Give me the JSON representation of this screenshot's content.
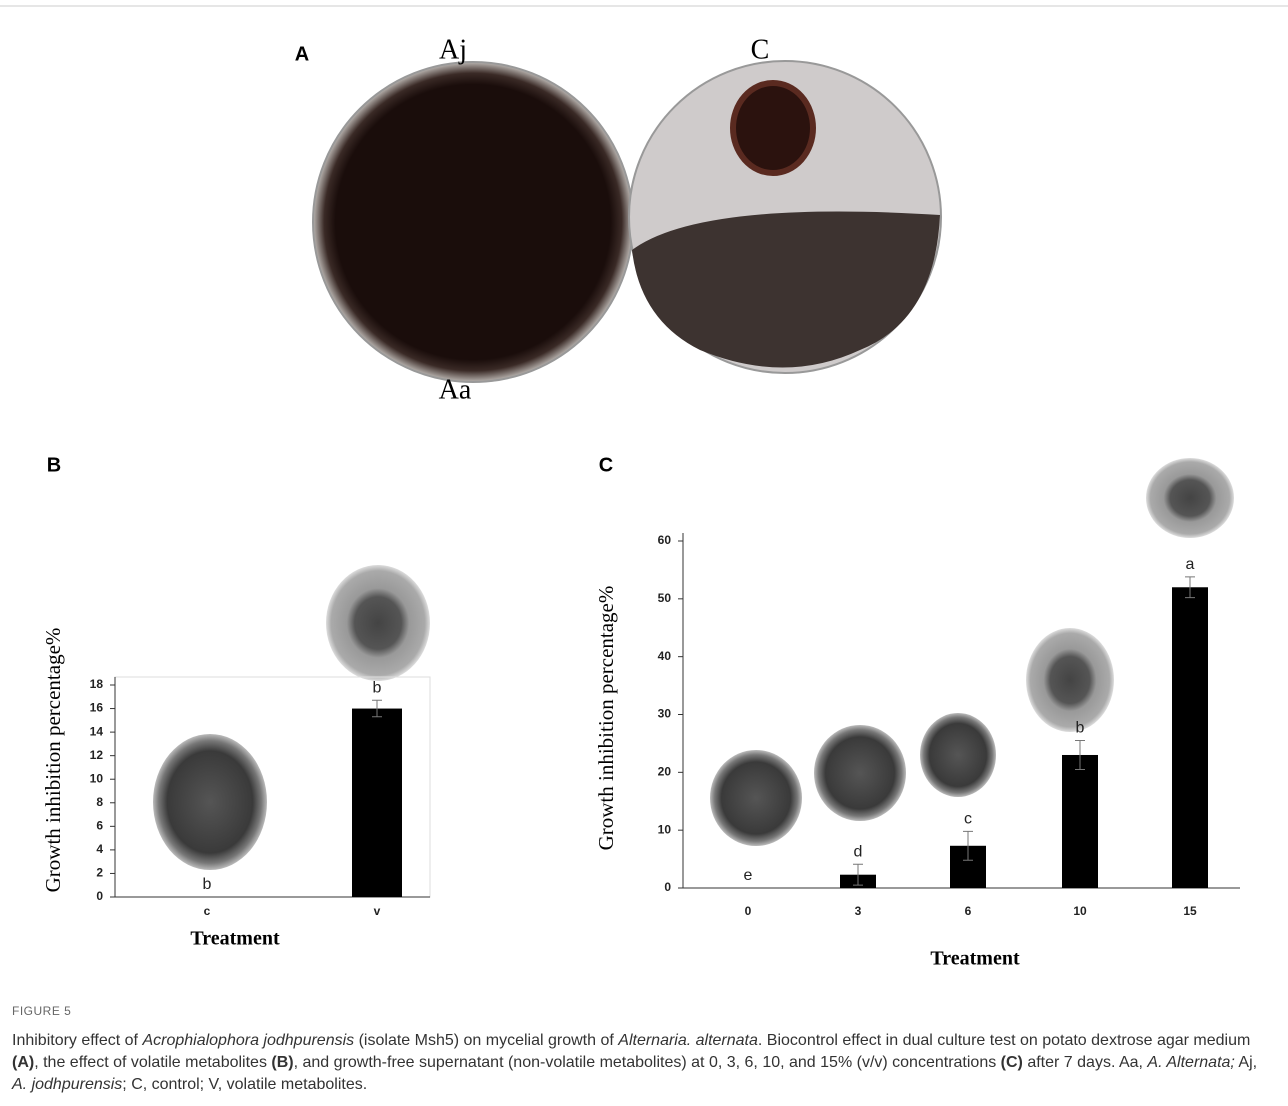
{
  "panel_labels": [
    "A",
    "B",
    "C"
  ],
  "photo_labels": [
    "Aj",
    "C",
    "Aa"
  ],
  "figure_label": "FIGURE 5",
  "caption": [
    "Inhibitory effect of ",
    "Acrophialophora jodhpurensis",
    " (isolate Msh5) on mycelial growth of ",
    "Alternaria. alternata",
    ". Biocontrol effect in dual culture test on potato dextrose agar medium ",
    "(A)",
    ", the effect of volatile metabolites ",
    "(B)",
    ", and growth-free supernatant (non-volatile metabolites) at 0, 3, 6, 10, and 15% (v/v) concentrations ",
    "(C)",
    " after 7 days. Aa, ",
    "A. Alternata;",
    " Aj, ",
    "A. jodhpurensis",
    "; C, control; V, volatile metabolites."
  ],
  "chart_data": [
    {
      "type": "bar",
      "categories": [
        "c",
        "v"
      ],
      "values": [
        0,
        16
      ],
      "errors": [
        0,
        0.7
      ],
      "letters": [
        "b",
        "b"
      ],
      "color": "#000000",
      "ylim": [
        0,
        18
      ],
      "yticks": [
        0,
        2,
        4,
        6,
        8,
        10,
        12,
        14,
        16,
        18
      ],
      "xlabel": "Treatment",
      "ylabel": "Growth inhibition percentage%"
    },
    {
      "type": "bar",
      "categories": [
        "0",
        "3",
        "6",
        "10",
        "15"
      ],
      "values": [
        0,
        2.3,
        7.3,
        23,
        52
      ],
      "errors": [
        0,
        1.8,
        2.5,
        2.5,
        1.8
      ],
      "letters": [
        "e",
        "d",
        "c",
        "b",
        "a"
      ],
      "color": "#000000",
      "ylim": [
        0,
        60
      ],
      "yticks": [
        0,
        10,
        20,
        30,
        40,
        50,
        60
      ],
      "xlabel": "Treatment",
      "ylabel": "Growth inhibition percentage%"
    }
  ]
}
